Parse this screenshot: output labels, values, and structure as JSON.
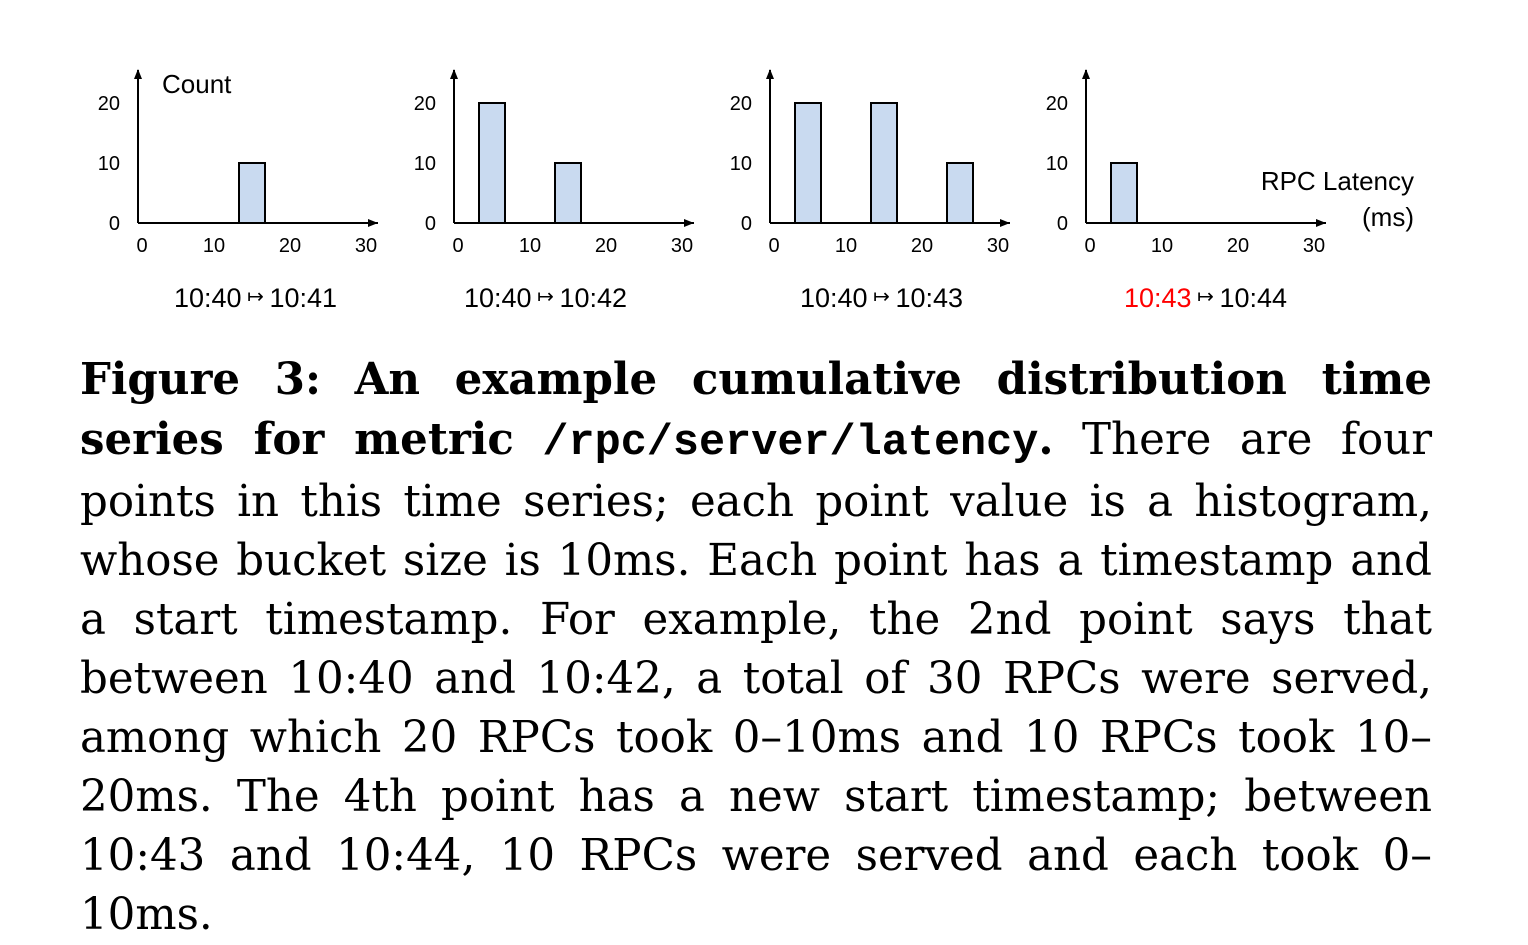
{
  "colors": {
    "bar_fill": "#c9daf0",
    "bar_stroke": "#000000",
    "highlight": "#ff0000"
  },
  "chart_data": [
    {
      "type": "bar",
      "x": [
        5,
        15,
        25
      ],
      "values": [
        0,
        10,
        0
      ],
      "xticks": [
        "0",
        "10",
        "20",
        "30"
      ],
      "yticks": [
        "0",
        "10",
        "20"
      ],
      "ylabel": "Count",
      "xlabel": "",
      "xlim": [
        0,
        30
      ],
      "ylim": [
        0,
        20
      ],
      "label": {
        "start": "10:40",
        "arrow": "↦",
        "end": "10:41",
        "start_highlight": false
      }
    },
    {
      "type": "bar",
      "x": [
        5,
        15,
        25
      ],
      "values": [
        20,
        10,
        0
      ],
      "xticks": [
        "0",
        "10",
        "20",
        "30"
      ],
      "yticks": [
        "0",
        "10",
        "20"
      ],
      "ylabel": "",
      "xlabel": "",
      "xlim": [
        0,
        30
      ],
      "ylim": [
        0,
        20
      ],
      "label": {
        "start": "10:40",
        "arrow": "↦",
        "end": "10:42",
        "start_highlight": false
      }
    },
    {
      "type": "bar",
      "x": [
        5,
        15,
        25
      ],
      "values": [
        20,
        20,
        10
      ],
      "xticks": [
        "0",
        "10",
        "20",
        "30"
      ],
      "yticks": [
        "0",
        "10",
        "20"
      ],
      "ylabel": "",
      "xlabel": "",
      "xlim": [
        0,
        30
      ],
      "ylim": [
        0,
        20
      ],
      "label": {
        "start": "10:40",
        "arrow": "↦",
        "end": "10:43",
        "start_highlight": false
      }
    },
    {
      "type": "bar",
      "x": [
        5,
        15,
        25
      ],
      "values": [
        10,
        0,
        0
      ],
      "xticks": [
        "0",
        "10",
        "20",
        "30"
      ],
      "yticks": [
        "0",
        "10",
        "20"
      ],
      "ylabel": "",
      "xlabel": "RPC Latency",
      "xlabel_unit": "(ms)",
      "xlim": [
        0,
        30
      ],
      "ylim": [
        0,
        20
      ],
      "label": {
        "start": "10:43",
        "arrow": "↦",
        "end": "10:44",
        "start_highlight": true
      }
    }
  ],
  "caption": {
    "figure_label": "Figure 3:",
    "title_a": "An example cumulative distribution time series for metric",
    "metric": "/rpc/server/latency",
    "title_end": ".",
    "body": "There are four points in this time series; each point value is a histogram, whose bucket size is 10ms. Each point has a timestamp and a start timestamp. For example, the 2nd point says that between 10:40 and 10:42, a total of 30 RPCs were served, among which 20 RPCs took 0–10ms and 10 RPCs took 10–20ms. The 4th point has a new start timestamp; between 10:43 and 10:44, 10 RPCs were served and each took 0–10ms."
  }
}
